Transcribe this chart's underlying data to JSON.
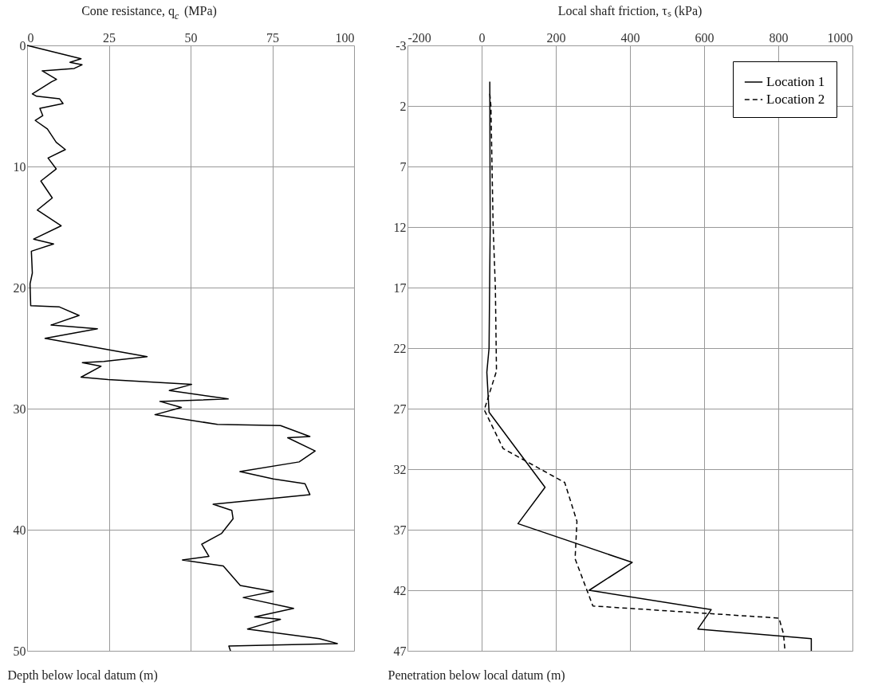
{
  "chart_data": [
    {
      "type": "line",
      "xlabel": "Cone resistance, q$_{c}$ (MPa)",
      "ylabel": "Depth below local datum (m)",
      "xlim": [
        0,
        100
      ],
      "xticks": [
        0,
        25,
        50,
        75,
        100
      ],
      "ylim": [
        50,
        0
      ],
      "yticks": [
        0,
        10,
        20,
        30,
        40,
        50
      ],
      "grid": true,
      "legend": false,
      "marker": "none",
      "series": [
        {
          "color": "#000000",
          "line_style": "solid",
          "x": [
            0,
            16.5,
            13.1,
            16.8,
            14.4,
            4.6,
            9.0,
            7.5,
            1.6,
            2.9,
            9.9,
            11.0,
            3.9,
            4.8,
            2.5,
            6.2,
            8.9,
            11.7,
            6.4,
            8.9,
            4.2,
            7.7,
            3.1,
            10.4,
            2.0,
            8.1,
            1.3,
            1.6,
            0.9,
            1.1,
            9.9,
            15.9,
            7.3,
            21.5,
            5.5,
            36.7,
            23.5,
            16.9,
            22.6,
            16.5,
            24.8,
            50.3,
            43.5,
            61.5,
            40.6,
            47.2,
            39.1,
            58.2,
            77.5,
            86.5,
            79.7,
            88.1,
            83.2,
            65.1,
            75.3,
            85.0,
            86.5,
            56.9,
            62.6,
            63.0,
            59.5,
            53.4,
            55.6,
            47.5,
            60.0,
            65.2,
            75.3,
            66.1,
            81.5,
            69.6,
            77.5,
            67.4,
            89.4,
            94.9,
            61.7,
            62.2
          ],
          "values": [
            0,
            1.1,
            1.4,
            1.6,
            1.9,
            2.1,
            2.8,
            3.0,
            4.0,
            4.2,
            4.4,
            4.8,
            5.2,
            5.8,
            6.2,
            6.9,
            8.0,
            8.6,
            9.3,
            10.2,
            11.2,
            12.6,
            13.6,
            14.9,
            16.0,
            16.4,
            17.0,
            18.8,
            19.7,
            21.5,
            21.6,
            22.3,
            23.1,
            23.4,
            24.2,
            25.7,
            26.1,
            26.2,
            26.5,
            27.4,
            27.6,
            28.0,
            28.5,
            29.2,
            29.4,
            29.9,
            30.5,
            31.3,
            31.4,
            32.3,
            32.4,
            33.5,
            34.4,
            35.2,
            35.8,
            36.2,
            37.1,
            37.9,
            38.4,
            39.1,
            40.3,
            41.2,
            42.2,
            42.5,
            43.0,
            44.6,
            45.1,
            45.6,
            46.5,
            47.2,
            47.4,
            48.2,
            49.0,
            49.4,
            49.6,
            50.0
          ]
        }
      ]
    },
    {
      "type": "line",
      "xlabel": "Local shaft friction, τₛ (kPa)",
      "ylabel": "Penetration below local datum (m)",
      "xlim": [
        -200,
        1000
      ],
      "xticks": [
        -200,
        0,
        200,
        400,
        600,
        800,
        1000
      ],
      "ylim": [
        47,
        -3
      ],
      "yticks": [
        -3,
        2,
        7,
        12,
        17,
        22,
        27,
        32,
        37,
        42,
        47
      ],
      "grid": true,
      "legend": "top right",
      "marker": "none",
      "series": [
        {
          "name": "Location 1",
          "color": "#000000",
          "line_style": "solid",
          "x": [
            22,
            23,
            20,
            14,
            20,
            171,
            98,
            406,
            290,
            619,
            583,
            889,
            889
          ],
          "values": [
            0,
            12,
            22,
            24,
            27.3,
            33.5,
            36.5,
            39.7,
            42.0,
            43.6,
            45.2,
            46.0,
            47.0
          ]
        },
        {
          "name": "Location 2",
          "color": "#000000",
          "line_style": "dashed",
          "x": [
            22,
            25,
            31,
            37,
            40,
            7,
            58,
            224,
            257,
            252,
            300,
            802,
            814,
            818
          ],
          "values": [
            1,
            2,
            12,
            17,
            23.9,
            27.1,
            30.3,
            33.1,
            36.3,
            39.4,
            43.3,
            44.3,
            45.6,
            47.0
          ]
        }
      ]
    }
  ]
}
